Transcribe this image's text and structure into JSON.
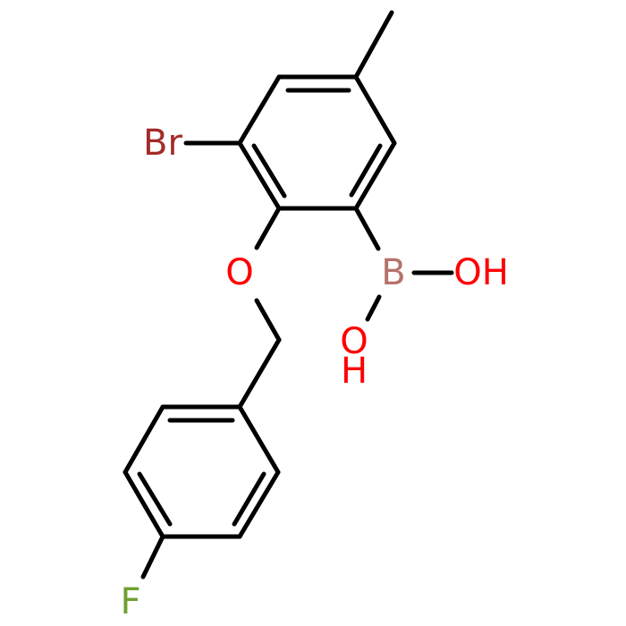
{
  "atoms": [
    {
      "label": "Br"
    },
    {
      "label": "O"
    },
    {
      "label": "B"
    },
    {
      "label": "OH"
    },
    {
      "label": "O"
    },
    {
      "label": "H"
    },
    {
      "label": "F"
    }
  ]
}
